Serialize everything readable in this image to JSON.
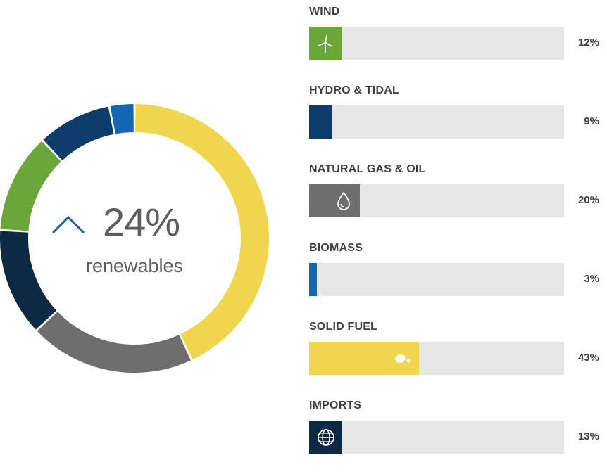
{
  "summary": {
    "value": "24%",
    "label": "renewables",
    "trend_icon": "chevron-up-icon"
  },
  "chart_data": {
    "type": "bar",
    "categories": [
      "WIND",
      "HYDRO & TIDAL",
      "NATURAL GAS & OIL",
      "BIOMASS",
      "SOLID FUEL",
      "IMPORTS"
    ],
    "values": [
      12,
      9,
      20,
      3,
      43,
      13
    ],
    "value_labels": [
      "12%",
      "9%",
      "20%",
      "3%",
      "43%",
      "13%"
    ],
    "colors": [
      "#6ba63a",
      "#0e3c6b",
      "#6e6e6e",
      "#1565b3",
      "#f0d54f",
      "#0d2a45"
    ],
    "icons": [
      "wind-turbine-icon",
      "",
      "droplet-icon",
      "",
      "coal-icon",
      "globe-icon"
    ],
    "max": 100,
    "donut": {
      "order": [
        "SOLID FUEL",
        "NATURAL GAS & OIL",
        "IMPORTS",
        "WIND",
        "HYDRO & TIDAL",
        "BIOMASS"
      ],
      "start": "top"
    },
    "track_color": "#e6e6e6"
  }
}
